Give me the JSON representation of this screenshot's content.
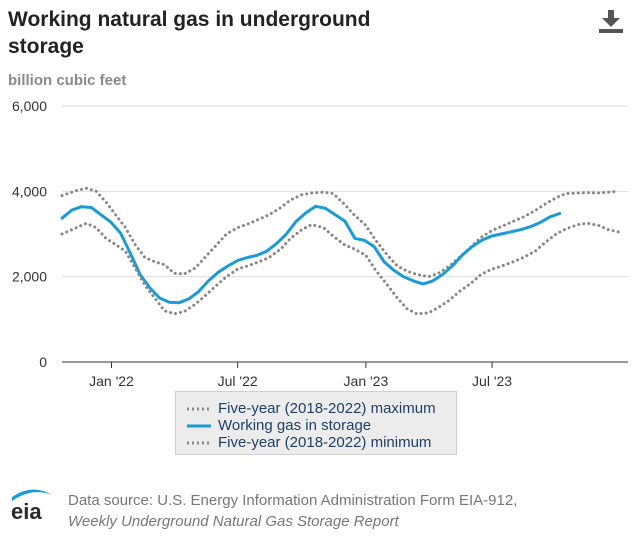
{
  "header": {
    "title": "Working natural gas in underground storage",
    "download_icon": "download-icon"
  },
  "chart_data": {
    "type": "line",
    "title": "Working natural gas in underground storage",
    "ylabel": "billion cubic feet",
    "xlabel": "",
    "ylim": [
      0,
      6000
    ],
    "yticks": [
      0,
      2000,
      4000,
      6000
    ],
    "ytick_labels": [
      "0",
      "2,000",
      "4,000",
      "6,000"
    ],
    "xlim": [
      "2021-10-22",
      "2024-01-12"
    ],
    "xticks": [
      "2022-01-01",
      "2022-07-01",
      "2023-01-01",
      "2023-07-01"
    ],
    "xtick_labels": [
      "Jan '22",
      "Jul '22",
      "Jan '23",
      "Jul '23"
    ],
    "grid": true,
    "legend_position": "bottom",
    "series": [
      {
        "name": "Five-year (2018-2022) maximum",
        "style": "dotted",
        "color": "#888888",
        "points": [
          [
            "2021-10-22",
            3900
          ],
          [
            "2021-11-12",
            4020
          ],
          [
            "2021-11-26",
            4070
          ],
          [
            "2021-12-10",
            4000
          ],
          [
            "2021-12-24",
            3750
          ],
          [
            "2022-01-07",
            3450
          ],
          [
            "2022-01-21",
            3150
          ],
          [
            "2022-02-04",
            2750
          ],
          [
            "2022-02-18",
            2450
          ],
          [
            "2022-03-04",
            2350
          ],
          [
            "2022-03-18",
            2280
          ],
          [
            "2022-04-01",
            2080
          ],
          [
            "2022-04-15",
            2060
          ],
          [
            "2022-05-01",
            2200
          ],
          [
            "2022-05-15",
            2450
          ],
          [
            "2022-06-01",
            2750
          ],
          [
            "2022-06-15",
            3000
          ],
          [
            "2022-07-01",
            3150
          ],
          [
            "2022-07-15",
            3230
          ],
          [
            "2022-08-01",
            3350
          ],
          [
            "2022-08-15",
            3450
          ],
          [
            "2022-09-01",
            3620
          ],
          [
            "2022-09-15",
            3800
          ],
          [
            "2022-10-01",
            3920
          ],
          [
            "2022-10-15",
            3960
          ],
          [
            "2022-11-01",
            3980
          ],
          [
            "2022-11-15",
            3950
          ],
          [
            "2022-12-01",
            3700
          ],
          [
            "2022-12-15",
            3450
          ],
          [
            "2023-01-01",
            3200
          ],
          [
            "2023-01-15",
            2850
          ],
          [
            "2023-02-01",
            2500
          ],
          [
            "2023-02-15",
            2250
          ],
          [
            "2023-03-01",
            2130
          ],
          [
            "2023-03-15",
            2050
          ],
          [
            "2023-04-01",
            2000
          ],
          [
            "2023-04-15",
            2080
          ],
          [
            "2023-05-01",
            2250
          ],
          [
            "2023-05-15",
            2450
          ],
          [
            "2023-06-01",
            2700
          ],
          [
            "2023-06-15",
            2920
          ],
          [
            "2023-07-01",
            3080
          ],
          [
            "2023-07-15",
            3180
          ],
          [
            "2023-08-01",
            3300
          ],
          [
            "2023-08-15",
            3400
          ],
          [
            "2023-09-01",
            3550
          ],
          [
            "2023-09-15",
            3700
          ],
          [
            "2023-10-01",
            3850
          ],
          [
            "2023-10-15",
            3950
          ],
          [
            "2023-11-01",
            3960
          ],
          [
            "2023-11-15",
            3970
          ],
          [
            "2023-12-01",
            3960
          ],
          [
            "2023-12-15",
            3980
          ],
          [
            "2023-12-29",
            4000
          ]
        ]
      },
      {
        "name": "Working gas in storage",
        "style": "solid",
        "color": "#1a9ad6",
        "points": [
          [
            "2021-10-22",
            3370
          ],
          [
            "2021-11-05",
            3560
          ],
          [
            "2021-11-19",
            3640
          ],
          [
            "2021-12-03",
            3620
          ],
          [
            "2021-12-17",
            3450
          ],
          [
            "2021-12-31",
            3280
          ],
          [
            "2022-01-14",
            3020
          ],
          [
            "2022-01-28",
            2550
          ],
          [
            "2022-02-11",
            2050
          ],
          [
            "2022-02-25",
            1740
          ],
          [
            "2022-03-11",
            1500
          ],
          [
            "2022-03-25",
            1400
          ],
          [
            "2022-04-08",
            1390
          ],
          [
            "2022-04-22",
            1480
          ],
          [
            "2022-05-06",
            1650
          ],
          [
            "2022-05-20",
            1900
          ],
          [
            "2022-06-03",
            2100
          ],
          [
            "2022-06-17",
            2250
          ],
          [
            "2022-07-01",
            2380
          ],
          [
            "2022-07-15",
            2450
          ],
          [
            "2022-07-29",
            2500
          ],
          [
            "2022-08-12",
            2600
          ],
          [
            "2022-08-26",
            2780
          ],
          [
            "2022-09-09",
            3000
          ],
          [
            "2022-09-23",
            3300
          ],
          [
            "2022-10-07",
            3500
          ],
          [
            "2022-10-21",
            3650
          ],
          [
            "2022-11-04",
            3600
          ],
          [
            "2022-11-18",
            3450
          ],
          [
            "2022-12-02",
            3300
          ],
          [
            "2022-12-16",
            2900
          ],
          [
            "2022-12-30",
            2850
          ],
          [
            "2023-01-13",
            2700
          ],
          [
            "2023-01-27",
            2350
          ],
          [
            "2023-02-10",
            2150
          ],
          [
            "2023-02-24",
            2000
          ],
          [
            "2023-03-10",
            1900
          ],
          [
            "2023-03-24",
            1830
          ],
          [
            "2023-04-07",
            1900
          ],
          [
            "2023-04-21",
            2050
          ],
          [
            "2023-05-05",
            2250
          ],
          [
            "2023-05-19",
            2500
          ],
          [
            "2023-06-02",
            2700
          ],
          [
            "2023-06-16",
            2850
          ],
          [
            "2023-06-30",
            2950
          ],
          [
            "2023-07-14",
            3000
          ],
          [
            "2023-07-28",
            3050
          ],
          [
            "2023-08-11",
            3100
          ],
          [
            "2023-08-25",
            3170
          ],
          [
            "2023-09-08",
            3270
          ],
          [
            "2023-09-22",
            3400
          ],
          [
            "2023-10-06",
            3480
          ]
        ]
      },
      {
        "name": "Five-year (2018-2022) minimum",
        "style": "dotted",
        "color": "#888888",
        "points": [
          [
            "2021-10-22",
            3000
          ],
          [
            "2021-11-12",
            3150
          ],
          [
            "2021-11-26",
            3250
          ],
          [
            "2021-12-10",
            3150
          ],
          [
            "2021-12-24",
            2900
          ],
          [
            "2022-01-07",
            2750
          ],
          [
            "2022-01-21",
            2600
          ],
          [
            "2022-02-04",
            2200
          ],
          [
            "2022-02-18",
            1800
          ],
          [
            "2022-03-04",
            1500
          ],
          [
            "2022-03-18",
            1200
          ],
          [
            "2022-04-01",
            1130
          ],
          [
            "2022-04-15",
            1180
          ],
          [
            "2022-05-01",
            1350
          ],
          [
            "2022-05-15",
            1550
          ],
          [
            "2022-06-01",
            1800
          ],
          [
            "2022-06-15",
            2000
          ],
          [
            "2022-07-01",
            2180
          ],
          [
            "2022-07-15",
            2250
          ],
          [
            "2022-08-01",
            2350
          ],
          [
            "2022-08-15",
            2450
          ],
          [
            "2022-09-01",
            2650
          ],
          [
            "2022-09-15",
            2900
          ],
          [
            "2022-10-01",
            3100
          ],
          [
            "2022-10-15",
            3220
          ],
          [
            "2022-11-01",
            3150
          ],
          [
            "2022-11-15",
            2950
          ],
          [
            "2022-12-01",
            2750
          ],
          [
            "2022-12-15",
            2650
          ],
          [
            "2023-01-01",
            2500
          ],
          [
            "2023-01-15",
            2150
          ],
          [
            "2023-02-01",
            1800
          ],
          [
            "2023-02-15",
            1500
          ],
          [
            "2023-03-01",
            1250
          ],
          [
            "2023-03-15",
            1130
          ],
          [
            "2023-04-01",
            1150
          ],
          [
            "2023-04-15",
            1280
          ],
          [
            "2023-05-01",
            1450
          ],
          [
            "2023-05-15",
            1650
          ],
          [
            "2023-06-01",
            1850
          ],
          [
            "2023-06-15",
            2050
          ],
          [
            "2023-07-01",
            2180
          ],
          [
            "2023-07-15",
            2250
          ],
          [
            "2023-08-01",
            2350
          ],
          [
            "2023-08-15",
            2450
          ],
          [
            "2023-09-01",
            2600
          ],
          [
            "2023-09-15",
            2800
          ],
          [
            "2023-10-01",
            3000
          ],
          [
            "2023-10-15",
            3120
          ],
          [
            "2023-11-01",
            3220
          ],
          [
            "2023-11-15",
            3250
          ],
          [
            "2023-12-01",
            3200
          ],
          [
            "2023-12-15",
            3100
          ],
          [
            "2023-12-29",
            3050
          ]
        ]
      }
    ]
  },
  "legend": {
    "items": [
      {
        "label": "Five-year (2018-2022) maximum",
        "style": "dotted",
        "color": "#888888"
      },
      {
        "label": "Working gas in storage",
        "style": "solid",
        "color": "#1a9ad6"
      },
      {
        "label": "Five-year (2018-2022) minimum",
        "style": "dotted",
        "color": "#888888"
      }
    ]
  },
  "footer": {
    "logo_icon": "eia-logo-icon",
    "logo_text": "eia",
    "source_line1": "Data source: U.S. Energy Information Administration Form EIA-912,",
    "source_line2": "Weekly Underground Natural Gas Storage Report"
  }
}
